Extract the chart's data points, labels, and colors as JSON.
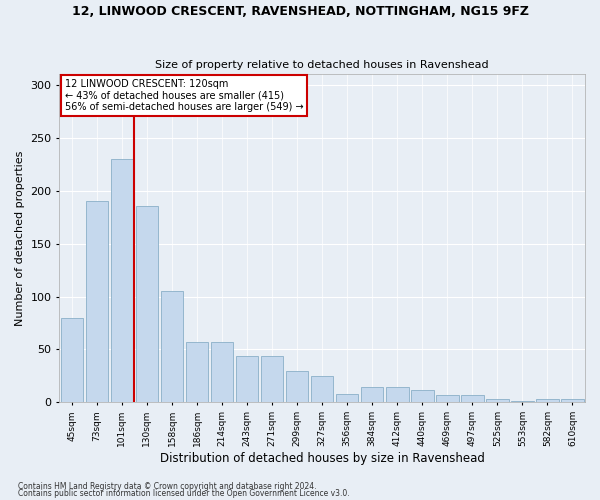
{
  "title": "12, LINWOOD CRESCENT, RAVENSHEAD, NOTTINGHAM, NG15 9FZ",
  "subtitle": "Size of property relative to detached houses in Ravenshead",
  "xlabel": "Distribution of detached houses by size in Ravenshead",
  "ylabel": "Number of detached properties",
  "categories": [
    "45sqm",
    "73sqm",
    "101sqm",
    "130sqm",
    "158sqm",
    "186sqm",
    "214sqm",
    "243sqm",
    "271sqm",
    "299sqm",
    "327sqm",
    "356sqm",
    "384sqm",
    "412sqm",
    "440sqm",
    "469sqm",
    "497sqm",
    "525sqm",
    "553sqm",
    "582sqm",
    "610sqm"
  ],
  "values": [
    80,
    190,
    230,
    185,
    105,
    57,
    57,
    44,
    44,
    30,
    25,
    8,
    15,
    15,
    12,
    7,
    7,
    3,
    1,
    3,
    3
  ],
  "bar_color": "#c5d8ed",
  "bar_edge_color": "#8aafc8",
  "vline_x_bar_index": 2,
  "vline_color": "#cc0000",
  "annotation_text": "12 LINWOOD CRESCENT: 120sqm\n← 43% of detached houses are smaller (415)\n56% of semi-detached houses are larger (549) →",
  "annotation_box_color": "#ffffff",
  "annotation_box_edge": "#cc0000",
  "footer1": "Contains HM Land Registry data © Crown copyright and database right 2024.",
  "footer2": "Contains public sector information licensed under the Open Government Licence v3.0.",
  "ylim": [
    0,
    310
  ],
  "background_color": "#e8eef5"
}
